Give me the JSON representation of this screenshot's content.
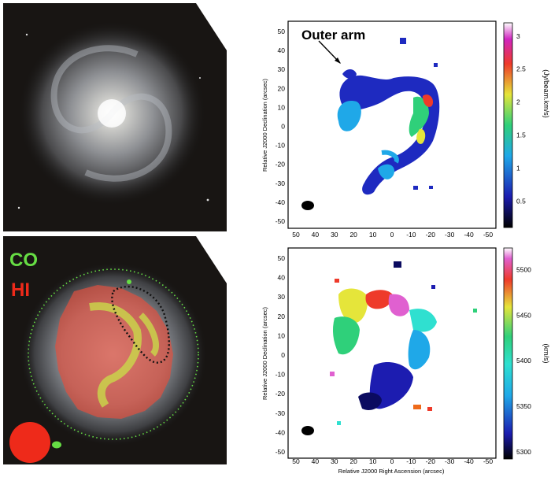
{
  "top_map": {
    "annotation": "Outer arm",
    "y_axis_label": "Relative J2000 Declination (arcsec)",
    "colorbar_label": "(Jy/beam.km/s)",
    "y_ticks": [
      "50",
      "40",
      "30",
      "20",
      "10",
      "0",
      "-10",
      "-20",
      "-30",
      "-40",
      "-50"
    ],
    "x_ticks": [
      "50",
      "40",
      "30",
      "20",
      "10",
      "0",
      "-10",
      "-20",
      "-30",
      "-40",
      "-50"
    ],
    "colorbar_ticks": [
      "3",
      "2.5",
      "2",
      "1.5",
      "1",
      "0.5"
    ]
  },
  "bottom_map": {
    "x_axis_label": "Relative J2000 Right Ascension (arcsec)",
    "y_axis_label": "Relative J2000 Declination (arcsec)",
    "colorbar_label": "(km/s)",
    "y_ticks": [
      "50",
      "40",
      "30",
      "20",
      "10",
      "0",
      "-10",
      "-20",
      "-30",
      "-40",
      "-50"
    ],
    "x_ticks": [
      "50",
      "40",
      "30",
      "20",
      "10",
      "0",
      "-10",
      "-20",
      "-30",
      "-40",
      "-50"
    ],
    "colorbar_ticks": [
      "5500",
      "5450",
      "5400",
      "5350",
      "5300"
    ]
  },
  "overlay": {
    "label_co": "CO",
    "label_hi": "HI",
    "co_color": "#66dd44",
    "hi_color": "#ee2a1a"
  }
}
